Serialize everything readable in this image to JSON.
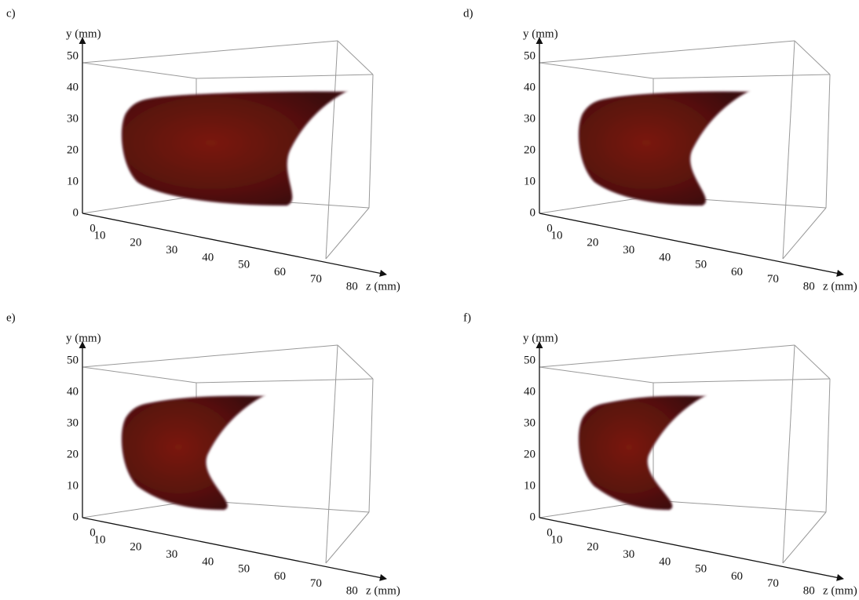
{
  "panels": [
    {
      "label": "c)",
      "y_axis_label": "y (mm)",
      "z_axis_label": "z (mm)",
      "yticks": [
        "50",
        "40",
        "30",
        "20",
        "10",
        "0"
      ],
      "zticks": [
        "0",
        "10",
        "20",
        "30",
        "40",
        "50",
        "60",
        "70",
        "80"
      ]
    },
    {
      "label": "d)",
      "y_axis_label": "y (mm)",
      "z_axis_label": "z (mm)",
      "yticks": [
        "50",
        "40",
        "30",
        "20",
        "10",
        "0"
      ],
      "zticks": [
        "0",
        "10",
        "20",
        "30",
        "40",
        "50",
        "60",
        "70",
        "80"
      ]
    },
    {
      "label": "e)",
      "y_axis_label": "y (mm)",
      "z_axis_label": "z (mm)",
      "yticks": [
        "50",
        "40",
        "30",
        "20",
        "10",
        "0"
      ],
      "zticks": [
        "0",
        "10",
        "20",
        "30",
        "40",
        "50",
        "60",
        "70",
        "80"
      ]
    },
    {
      "label": "f)",
      "y_axis_label": "y (mm)",
      "z_axis_label": "z (mm)",
      "yticks": [
        "50",
        "40",
        "30",
        "20",
        "10",
        "0"
      ],
      "zticks": [
        "0",
        "10",
        "20",
        "30",
        "40",
        "50",
        "60",
        "70",
        "80"
      ]
    }
  ]
}
